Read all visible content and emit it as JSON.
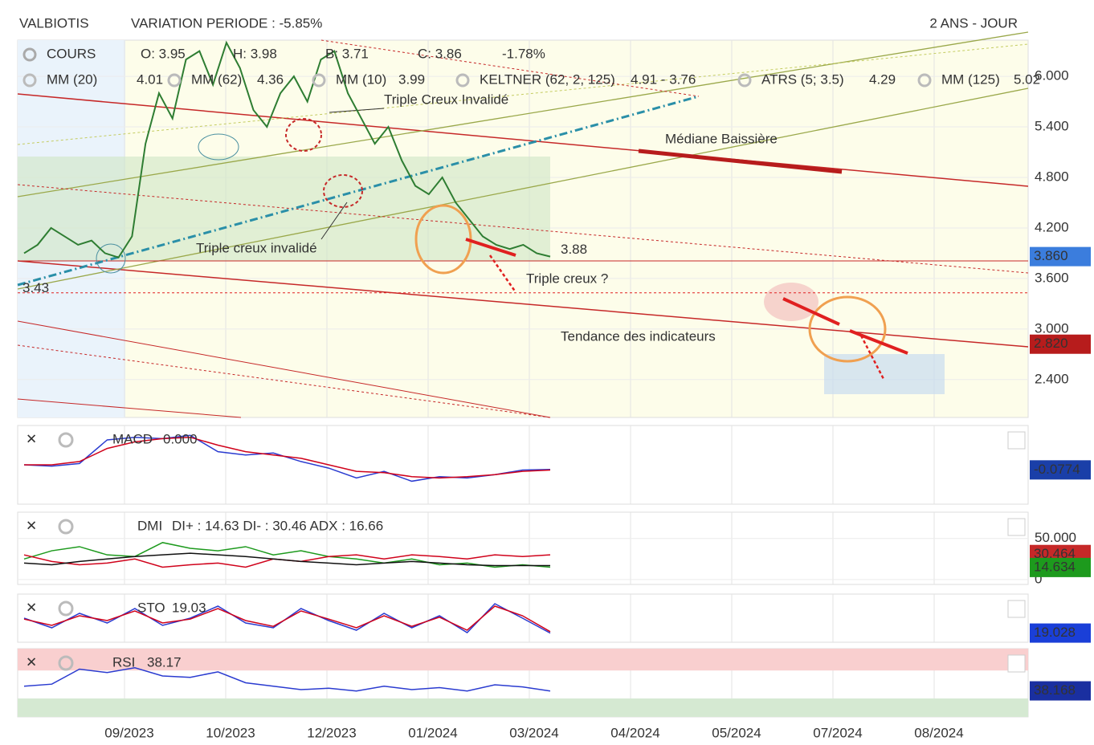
{
  "header": {
    "symbol": "VALBIOTIS",
    "variation": "VARIATION PERIODE : -5.85%",
    "period": "2 ANS - JOUR"
  },
  "x_axis": {
    "ticks": [
      "09/2023",
      "10/2023",
      "12/2023",
      "01/2024",
      "03/2024",
      "04/2024",
      "05/2024",
      "07/2024",
      "08/2024"
    ]
  },
  "chart_data": [
    {
      "type": "line",
      "readouts": [
        "O: 3.95",
        "H: 3.98",
        "B: 3.71",
        "C: 3.86",
        "-1.78%"
      ],
      "legend": [
        {
          "name": "MM (20)",
          "value": "4.01",
          "color": "#d0021b"
        },
        {
          "name": "MM (62)",
          "value": "4.36",
          "color": "#f08a00"
        },
        {
          "name": "MM (10)",
          "value": "3.99",
          "color": "#2bb5c8"
        },
        {
          "name": "KELTNER (62, 2, 125)",
          "value": "4.91 - 3.76",
          "color": "#0a8a0a"
        },
        {
          "name": "ATRS (5; 3.5)",
          "value": "4.29",
          "color": "#f08a00"
        },
        {
          "name": "MM (125)",
          "value": "5.02",
          "color": "#22b022"
        }
      ],
      "annotations": [
        {
          "text": "Triple Creux Invalidé",
          "color": "#111111"
        },
        {
          "text": "Médiane Baissière",
          "color": "#c00000"
        },
        {
          "text": "Triple creux invalidé",
          "color": "#111111"
        },
        {
          "text": "Triple creux ?",
          "color": "#f08a00"
        },
        {
          "text": "Tendance des indicateurs",
          "color": "#1f4e8c"
        }
      ],
      "levels": [
        3.88,
        3.43
      ],
      "series": [
        {
          "name": "COURS",
          "color": "#2e7d32",
          "values": [
            3.9,
            4.0,
            4.2,
            4.1,
            4.0,
            4.05,
            3.9,
            3.85,
            4.1,
            5.2,
            5.8,
            5.5,
            6.2,
            6.3,
            5.9,
            6.4,
            6.1,
            5.6,
            5.4,
            5.8,
            6.0,
            5.7,
            6.2,
            6.3,
            5.8,
            5.5,
            5.2,
            5.4,
            5.0,
            4.7,
            4.6,
            4.8,
            4.5,
            4.3,
            4.1,
            4.0,
            3.95,
            4.0,
            3.9,
            3.86
          ]
        }
      ],
      "ylim": [
        1.95,
        6.43
      ],
      "yticks": [
        {
          "value": 6.0,
          "label": "6.000"
        },
        {
          "value": 5.4,
          "label": "5.400"
        },
        {
          "value": 4.8,
          "label": "4.800"
        },
        {
          "value": 4.2,
          "label": "4.200"
        },
        {
          "value": 3.6,
          "label": "3.600"
        },
        {
          "value": 3.0,
          "label": "3.000"
        },
        {
          "value": 2.4,
          "label": "2.400"
        }
      ],
      "tags": [
        {
          "value": 3.86,
          "label": "3.860",
          "color": "#3b7ddd"
        },
        {
          "value": 2.82,
          "label": "2.820",
          "color": "#b71c1c"
        }
      ]
    },
    {
      "type": "line",
      "title": "MACD",
      "readout": "0.000",
      "series": [
        {
          "color": "#2a3bd0",
          "values": [
            0,
            -0.02,
            0.02,
            0.38,
            0.42,
            0.4,
            0.45,
            0.2,
            0.15,
            0.18,
            0.05,
            -0.05,
            -0.2,
            -0.1,
            -0.25,
            -0.18,
            -0.2,
            -0.15,
            -0.08,
            -0.07
          ]
        },
        {
          "color": "#d0021b",
          "values": [
            0,
            0,
            0.05,
            0.25,
            0.35,
            0.4,
            0.42,
            0.3,
            0.2,
            0.15,
            0.1,
            0,
            -0.1,
            -0.12,
            -0.18,
            -0.2,
            -0.18,
            -0.15,
            -0.1,
            -0.08
          ]
        }
      ],
      "ylim": [
        -0.6,
        0.6
      ],
      "tags": [
        {
          "value": -0.0774,
          "color": "#1a3fa8"
        }
      ]
    },
    {
      "type": "line",
      "title": "DMI",
      "readout": "DI+ : 14.63 DI- : 30.46 ADX : 16.66",
      "series": [
        {
          "color": "#1d9a1d",
          "values": [
            25,
            35,
            40,
            30,
            28,
            45,
            38,
            35,
            40,
            30,
            35,
            28,
            25,
            20,
            25,
            18,
            20,
            15,
            18,
            15
          ]
        },
        {
          "color": "#d0021b",
          "values": [
            30,
            22,
            18,
            20,
            25,
            15,
            18,
            20,
            15,
            25,
            22,
            28,
            30,
            25,
            30,
            28,
            25,
            30,
            28,
            30
          ]
        },
        {
          "color": "#111111",
          "values": [
            20,
            18,
            22,
            25,
            28,
            30,
            32,
            30,
            28,
            25,
            22,
            20,
            18,
            20,
            22,
            20,
            18,
            17,
            17,
            17
          ]
        }
      ],
      "ylim": [
        -6,
        82
      ],
      "yticks": [
        {
          "value": 50,
          "label": "50.000"
        },
        0
      ],
      "tags": [
        {
          "value": 30.464,
          "color": "#c62828"
        },
        {
          "value": 14.634,
          "color": "#1d9a1d"
        }
      ]
    },
    {
      "type": "line",
      "title": "STO",
      "readout": "19.03",
      "series": [
        {
          "color": "#2a3bd0",
          "values": [
            50,
            30,
            60,
            40,
            70,
            35,
            50,
            75,
            40,
            30,
            70,
            45,
            25,
            60,
            30,
            55,
            20,
            80,
            50,
            19
          ]
        },
        {
          "color": "#d0021b",
          "values": [
            48,
            35,
            55,
            45,
            65,
            40,
            48,
            70,
            45,
            33,
            65,
            48,
            30,
            55,
            33,
            52,
            25,
            75,
            55,
            22
          ]
        }
      ],
      "ylim": [
        0,
        100
      ],
      "tags": [
        {
          "value": 19.028,
          "color": "#1a3fd8"
        }
      ]
    },
    {
      "type": "line",
      "title": "RSI",
      "readout": "38.17",
      "series": [
        {
          "color": "#2a3bd0",
          "values": [
            45,
            48,
            70,
            65,
            72,
            60,
            58,
            66,
            50,
            45,
            40,
            42,
            38,
            45,
            40,
            43,
            38,
            47,
            44,
            38
          ]
        }
      ],
      "ylim": [
        0,
        100
      ],
      "bands": [
        {
          "from": 68,
          "to": 100,
          "color": "#f9cfcf"
        },
        {
          "from": 0,
          "to": 27,
          "color": "#d5e9d2"
        }
      ],
      "tags": [
        {
          "value": 38.168,
          "color": "#1a2fa0"
        }
      ]
    }
  ]
}
